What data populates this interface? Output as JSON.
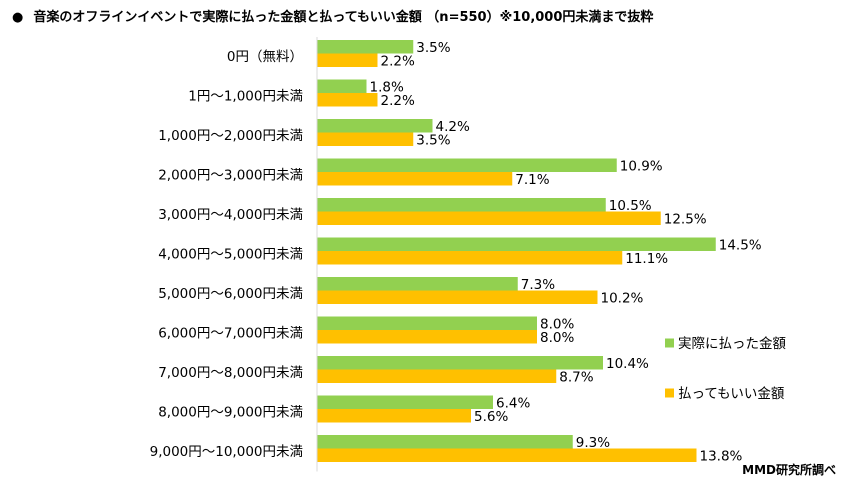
{
  "title": "音楽のオフラインイベントで実際に払った金額と払ってもいい金額 （n=550）※10,000円未満まで抜粋",
  "title_bullet": "●",
  "source": "MMD研究所調べ",
  "colors": {
    "paid": "#92d050",
    "willing": "#ffc000"
  },
  "chart_data": {
    "type": "bar",
    "orientation": "horizontal",
    "categories": [
      "0円（無料）",
      "1円～1,000円未満",
      "1,000円～2,000円未満",
      "2,000円～3,000円未満",
      "3,000円～4,000円未満",
      "4,000円～5,000円未満",
      "5,000円～6,000円未満",
      "6,000円～7,000円未満",
      "7,000円～8,000円未満",
      "8,000円～9,000円未満",
      "9,000円～10,000円未満"
    ],
    "series": [
      {
        "name": "実際に払った金額",
        "values": [
          3.5,
          1.8,
          4.2,
          10.9,
          10.5,
          14.5,
          7.3,
          8.0,
          10.4,
          6.4,
          9.3
        ]
      },
      {
        "name": "払ってもいい金額",
        "values": [
          2.2,
          2.2,
          3.5,
          7.1,
          12.5,
          11.1,
          10.2,
          8.0,
          8.7,
          5.6,
          13.8
        ]
      }
    ],
    "value_suffix": "%",
    "xlim": [
      0,
      16
    ],
    "grid": false,
    "legend_position": "right"
  }
}
